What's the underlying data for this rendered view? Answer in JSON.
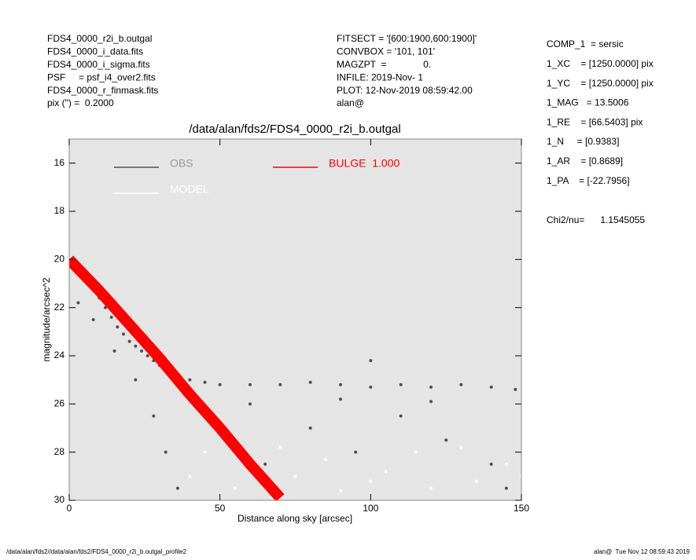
{
  "header": {
    "left": [
      "FDS4_0000_r2i_b.outgal",
      "FDS4_0000_i_data.fits",
      "FDS4_0000_i_sigma.fits",
      "PSF     = psf_i4_over2.fits",
      "FDS4_0000_r_finmask.fits",
      "pix (\") =  0.2000"
    ],
    "center": [
      "FITSECT = '[600:1900,600:1900]'",
      "CONVBOX = '101, 101'",
      "MAGZPT  =              0.",
      "INFILE: 2019-Nov- 1",
      "PLOT: 12-Nov-2019 08:59:42.00",
      "alan@"
    ]
  },
  "parameters": [
    "COMP_1  = sersic",
    "1_XC    = [1250.0000] pix",
    "1_YC    = [1250.0000] pix",
    "1_MAG   = 13.5006",
    "1_RE    = [66.5403] pix",
    "1_N     = [0.9383]",
    "1_AR    = [0.8689]",
    "1_PA    = [-22.7956]"
  ],
  "chi2": "Chi2/nu=      1.1545055",
  "footer": {
    "left": "/data/alan/fds2//data/alan/fds2/FDS4_0000_r2i_b.outgal_profile2",
    "right": "alan@  Tue Nov 12 08:59:43 2019"
  },
  "chart_data": {
    "type": "scatter",
    "title": "/data/alan/fds2/FDS4_0000_r2i_b.outgal",
    "x_label": "Distance along sky [arcsec]",
    "y_label": "magnitude/arcsec^2",
    "xlim": [
      0,
      150
    ],
    "ylim": [
      30,
      15
    ],
    "xticks": [
      0,
      50,
      100,
      150
    ],
    "yticks": [
      16,
      18,
      20,
      22,
      24,
      26,
      28,
      30
    ],
    "background": "#e5e5e5",
    "series": [
      {
        "name": "OBS",
        "color": "#505050",
        "style": "points",
        "x": [
          0.5,
          2,
          4,
          6,
          8,
          10,
          12,
          14,
          16,
          18,
          20,
          22,
          24,
          26,
          28,
          30,
          33,
          36,
          40,
          45,
          50,
          60,
          70,
          80,
          90,
          100,
          110,
          120,
          130,
          140,
          148,
          3,
          8,
          15,
          22,
          28,
          32,
          36,
          45,
          55,
          65,
          80,
          95,
          110,
          125,
          140,
          60,
          90,
          120,
          145,
          100
        ],
        "values": [
          20.3,
          20.4,
          20.5,
          20.8,
          21.2,
          21.6,
          22.0,
          22.4,
          22.8,
          23.1,
          23.4,
          23.6,
          23.8,
          24.0,
          24.2,
          24.4,
          24.6,
          24.8,
          25.0,
          25.1,
          25.2,
          25.2,
          25.2,
          25.1,
          25.2,
          25.3,
          25.2,
          25.3,
          25.2,
          25.3,
          25.4,
          21.8,
          22.5,
          23.8,
          25.0,
          26.5,
          28.0,
          29.5,
          26.5,
          27.5,
          28.5,
          27.0,
          28.0,
          26.5,
          27.5,
          28.5,
          26.0,
          25.8,
          25.9,
          29.5,
          24.2
        ]
      },
      {
        "name": "MODEL",
        "color": "#ffffff",
        "style": "points",
        "x": [
          40,
          45,
          55,
          75,
          90,
          105,
          120,
          135,
          150,
          70,
          85,
          100,
          115,
          130,
          145,
          60
        ],
        "values": [
          29.0,
          28.0,
          29.5,
          29.0,
          29.6,
          28.8,
          29.5,
          29.2,
          29.0,
          27.8,
          28.3,
          29.2,
          28.0,
          27.8,
          28.5,
          28.6
        ]
      },
      {
        "name": "BULGE  1.000",
        "color": "#ff0000",
        "style": "line",
        "x": [
          0,
          10,
          20,
          30,
          40,
          50,
          60,
          70
        ],
        "values": [
          20.0,
          21.3,
          22.7,
          24.1,
          25.6,
          27.0,
          28.5,
          29.9
        ]
      }
    ]
  }
}
